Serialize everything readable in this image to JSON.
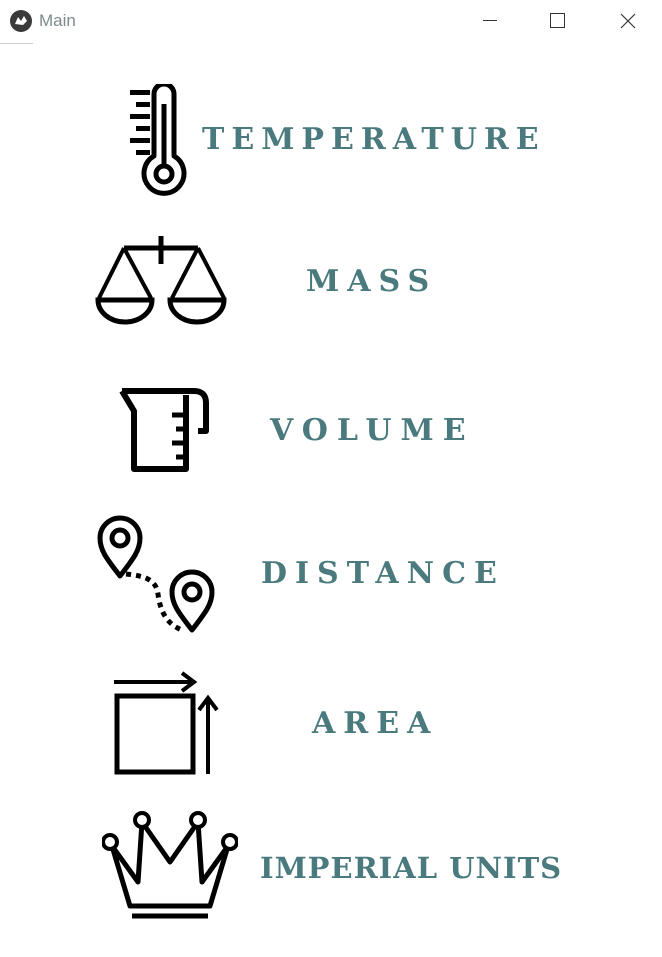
{
  "window": {
    "title": "Main",
    "controls": [
      "minimize",
      "maximize",
      "close"
    ]
  },
  "menu": {
    "items": [
      {
        "label": "TEMPERATURE",
        "icon": "thermometer-icon"
      },
      {
        "label": "MASS",
        "icon": "scale-icon"
      },
      {
        "label": "VOLUME",
        "icon": "measuring-cup-icon"
      },
      {
        "label": "DISTANCE",
        "icon": "map-route-icon"
      },
      {
        "label": "AREA",
        "icon": "area-square-icon"
      },
      {
        "label": "IMPERIAL UNITS",
        "icon": "crown-icon"
      }
    ]
  },
  "colors": {
    "label": "#4a7a7d",
    "icon": "#000000",
    "title_text": "#7d8b8e"
  }
}
